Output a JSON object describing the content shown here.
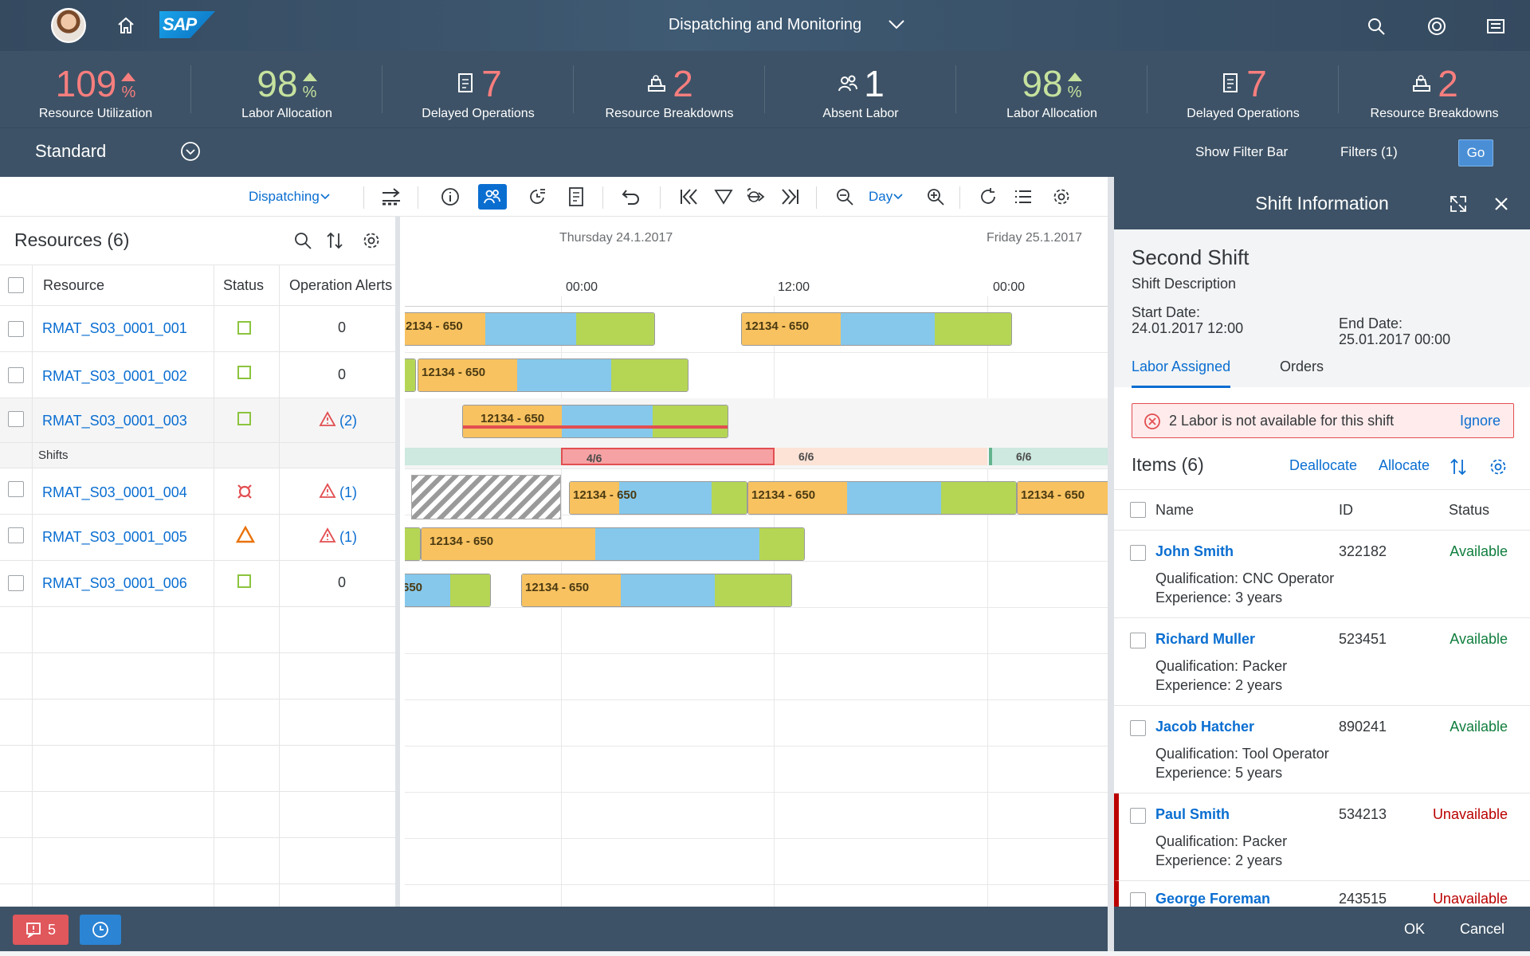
{
  "shell": {
    "title": "Dispatching and Monitoring",
    "logo_text": "SAP",
    "icons": [
      "home-icon",
      "search-icon",
      "copilot-icon",
      "notifications-icon"
    ]
  },
  "kpis": [
    {
      "value": "109",
      "unit": "%",
      "trend": "up",
      "label": "Resource Utilization",
      "color": "#f77e7e"
    },
    {
      "value": "98",
      "unit": "%",
      "trend": "up",
      "label": "Labor Allocation",
      "color": "#c6e29e"
    },
    {
      "value": "7",
      "icon": "document-icon",
      "label": "Delayed Operations",
      "color": "#f77e7e"
    },
    {
      "value": "2",
      "icon": "machine-icon",
      "label": "Resource Breakdowns",
      "color": "#f77e7e"
    },
    {
      "value": "1",
      "icon": "group-icon",
      "label": "Absent Labor",
      "color": "#ffffff"
    },
    {
      "value": "98",
      "unit": "%",
      "trend": "up",
      "label": "Labor Allocation",
      "color": "#c6e29e"
    },
    {
      "value": "7",
      "icon": "document-icon",
      "label": "Delayed Operations",
      "color": "#f77e7e"
    },
    {
      "value": "2",
      "icon": "machine-icon",
      "label": "Resource Breakdowns",
      "color": "#f77e7e"
    }
  ],
  "variant": {
    "name": "Standard",
    "show_filter_bar": "Show Filter Bar",
    "filters": "Filters (1)",
    "go": "Go"
  },
  "toolbar": {
    "mode": "Dispatching",
    "zoom_level": "Day"
  },
  "resources": {
    "title": "Resources (6)",
    "columns": {
      "resource": "Resource",
      "status": "Status",
      "alerts": "Operation Alerts"
    },
    "rows": [
      {
        "name": "RMAT_S03_0001_001",
        "status": "ok",
        "alerts": "0"
      },
      {
        "name": "RMAT_S03_0001_002",
        "status": "ok",
        "alerts": "0"
      },
      {
        "name": "RMAT_S03_0001_003",
        "status": "ok",
        "alerts": "(2)"
      },
      {
        "name": "RMAT_S03_0001_004",
        "status": "down",
        "alerts": "(1)"
      },
      {
        "name": "RMAT_S03_0001_005",
        "status": "warning",
        "alerts": "(1)"
      },
      {
        "name": "RMAT_S03_0001_006",
        "status": "ok",
        "alerts": "0"
      }
    ],
    "shifts_label": "Shifts"
  },
  "gantt": {
    "dates": [
      "Thursday 24.1.2017",
      "Friday 25.1.2017"
    ],
    "hours": [
      "00:00",
      "12:00",
      "00:00"
    ],
    "op_label": "12134 - 650",
    "op_label_clipped": "2134 - 650",
    "op_label_stub": "650",
    "op_label_split_a": "12134",
    "op_label_split_b": "650",
    "shifts": [
      "4/6",
      "6/6",
      "6/6"
    ]
  },
  "footer": {
    "alert_count": "5"
  },
  "side": {
    "title": "Shift Information",
    "shift_name": "Second Shift",
    "shift_desc": "Shift Description",
    "start_label": "Start Date:",
    "start_value": "24.01.2017 12:00",
    "end_label": "End Date:",
    "end_value": "25.01.2017 00:00",
    "tabs": [
      "Labor Assigned",
      "Orders"
    ],
    "error_text": "2 Labor is not available for this shift",
    "error_action": "Ignore",
    "items_title": "Items (6)",
    "deallocate": "Deallocate",
    "allocate": "Allocate",
    "list_columns": {
      "name": "Name",
      "id": "ID",
      "status": "Status"
    },
    "items": [
      {
        "name": "John Smith",
        "id": "322182",
        "status": "Available",
        "q_label": "Qualification:",
        "qualification": "CNC Operator",
        "e_label": "Experience:",
        "experience": "3 years"
      },
      {
        "name": "Richard Muller",
        "id": "523451",
        "status": "Available",
        "q_label": "Qualification:",
        "qualification": "Packer",
        "e_label": "Experience:",
        "experience": "2 years"
      },
      {
        "name": "Jacob Hatcher",
        "id": "890241",
        "status": "Available",
        "q_label": "Qualification:",
        "qualification": "Tool Operator",
        "e_label": "Experience:",
        "experience": "5 years"
      },
      {
        "name": "Paul Smith",
        "id": "534213",
        "status": "Unavailable",
        "q_label": "Qualification:",
        "qualification": "Packer",
        "e_label": "Experience:",
        "experience": "2 years"
      },
      {
        "name": "George Foreman",
        "id": "243515",
        "status": "Unavailable"
      }
    ],
    "ok": "OK",
    "cancel": "Cancel"
  }
}
